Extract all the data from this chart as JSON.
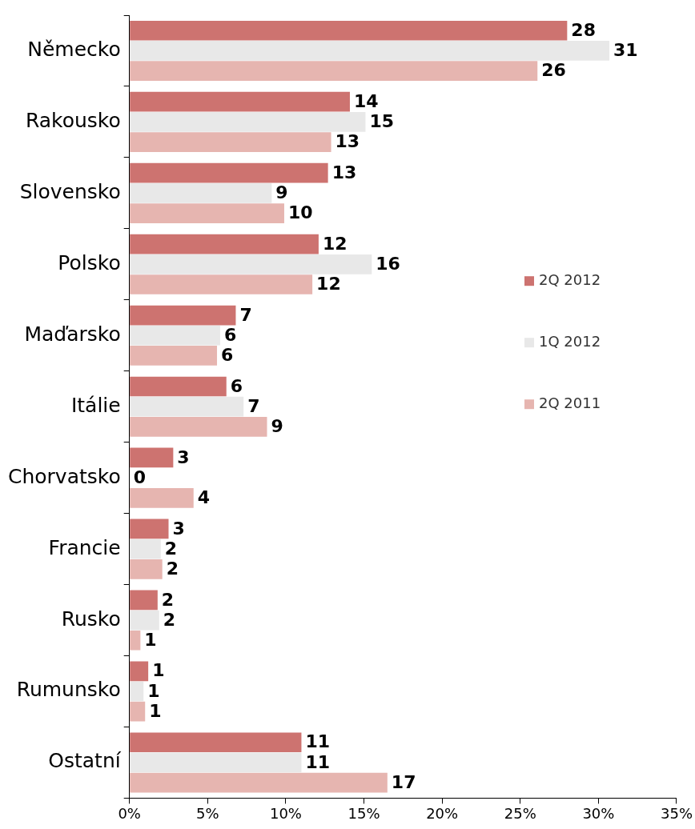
{
  "chart_data": {
    "type": "bar",
    "orientation": "horizontal",
    "categories": [
      "Německo",
      "Rakousko",
      "Slovensko",
      "Polsko",
      "Maďarsko",
      "Itálie",
      "Chorvatsko",
      "Francie",
      "Rusko",
      "Rumunsko",
      "Ostatní"
    ],
    "series": [
      {
        "name": "2Q 2012",
        "color": "#cd7370",
        "values": [
          28.0,
          14.1,
          12.7,
          12.1,
          6.8,
          6.2,
          2.8,
          2.5,
          1.8,
          1.2,
          11.0
        ],
        "value_labels": [
          "28",
          "14",
          "13",
          "12",
          "7",
          "6",
          "3",
          "3",
          "2",
          "1",
          "11"
        ]
      },
      {
        "name": "1Q 2012",
        "color": "#e8e8e8",
        "values": [
          30.7,
          15.1,
          9.1,
          15.5,
          5.8,
          7.3,
          0,
          2.0,
          1.9,
          0.9,
          11.0
        ],
        "value_labels": [
          "31",
          "15",
          "9",
          "16",
          "6",
          "7",
          "0",
          "2",
          "2",
          "1",
          "11"
        ]
      },
      {
        "name": "2Q 2011",
        "color": "#e6b5b0",
        "values": [
          26.1,
          12.9,
          9.9,
          11.7,
          5.6,
          8.8,
          4.1,
          2.1,
          0.7,
          1.0,
          16.5
        ],
        "value_labels": [
          "26",
          "13",
          "10",
          "12",
          "6",
          "9",
          "4",
          "2",
          "1",
          "1",
          "17"
        ]
      }
    ],
    "xlim": [
      0,
      35
    ],
    "xticks": [
      {
        "value": 0,
        "label": "0%"
      },
      {
        "value": 5,
        "label": "5%"
      },
      {
        "value": 10,
        "label": "10%"
      },
      {
        "value": 15,
        "label": "15%"
      },
      {
        "value": 20,
        "label": "20%"
      },
      {
        "value": 25,
        "label": "25%"
      },
      {
        "value": 30,
        "label": "30%"
      },
      {
        "value": 35,
        "label": "35%"
      }
    ],
    "grid": false,
    "legend": "right"
  }
}
